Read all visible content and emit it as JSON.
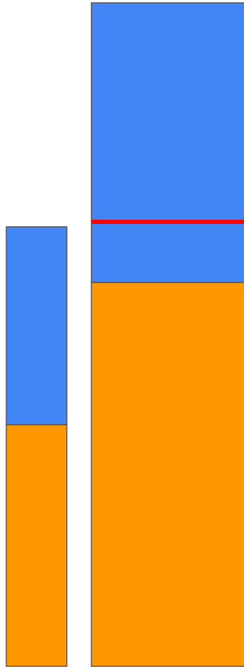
{
  "chart_data": {
    "type": "bar",
    "stacked": true,
    "categories": [
      "",
      ""
    ],
    "series": [
      {
        "color": "#ff9800",
        "values": [
          343,
          545
        ]
      },
      {
        "color": "#4285f4",
        "values": [
          281,
          397
        ]
      }
    ],
    "reference_line": {
      "value": 631,
      "color": "#ff0000"
    },
    "ylim": [
      0,
      944
    ],
    "axes_visible": false,
    "grid": false,
    "legend": "none"
  }
}
